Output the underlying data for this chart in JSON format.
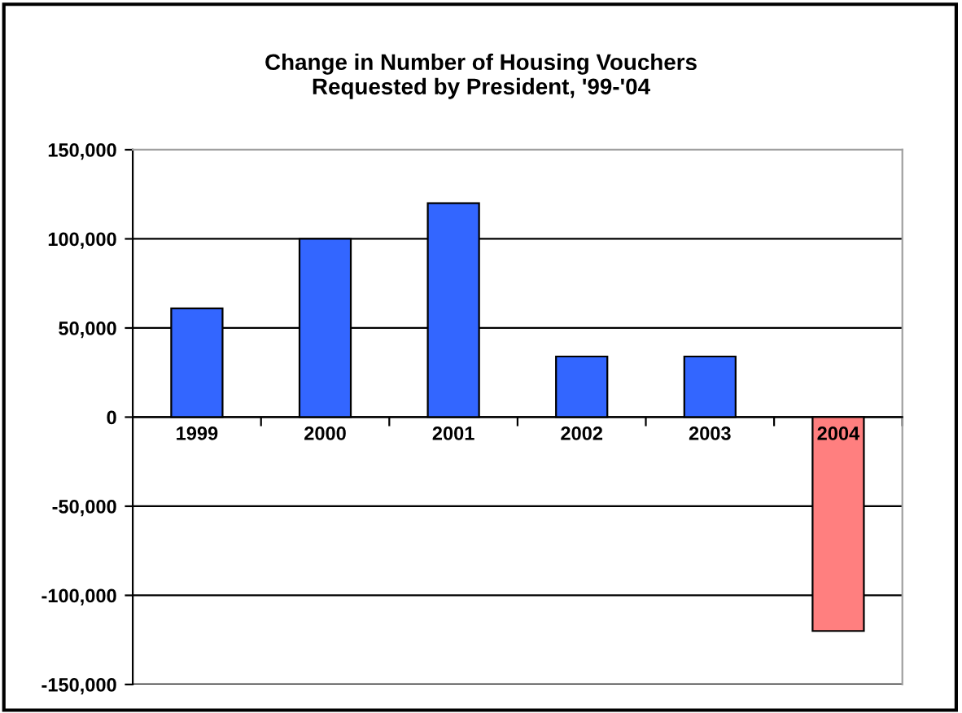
{
  "chart_data": {
    "type": "bar",
    "title": "Change in Number of Housing Vouchers\nRequested by President, '99-'04",
    "categories": [
      "1999",
      "2000",
      "2001",
      "2002",
      "2003",
      "2004"
    ],
    "values": [
      61000,
      100000,
      120000,
      34000,
      34000,
      -120000
    ],
    "colors": [
      "#3366ff",
      "#3366ff",
      "#3366ff",
      "#3366ff",
      "#3366ff",
      "#ff7f7f"
    ],
    "ylim": [
      -150000,
      150000
    ],
    "yticks": [
      {
        "value": -150000,
        "label": "-150,000"
      },
      {
        "value": -100000,
        "label": "-100,000"
      },
      {
        "value": -50000,
        "label": "-50,000"
      },
      0,
      {
        "value": 50000,
        "label": "50,000"
      },
      {
        "value": 100000,
        "label": "100,000"
      },
      {
        "value": 150000,
        "label": "150,000"
      }
    ],
    "grid": "y",
    "legend": false
  }
}
